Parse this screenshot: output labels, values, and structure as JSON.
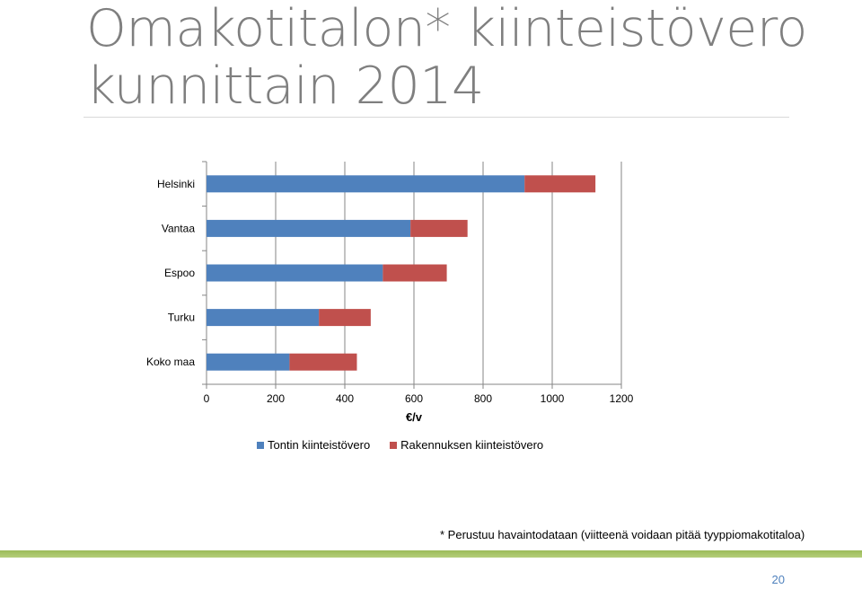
{
  "slide": {
    "title": "Omakotitalon* kiinteistövero kunnittain 2014",
    "footnote": "* Perustuu havaintodataan (viitteenä voidaan pitää tyyppiomakotitaloa)",
    "page_number": "20"
  },
  "chart_data": {
    "type": "bar",
    "orientation": "horizontal",
    "stacked": true,
    "categories": [
      "Helsinki",
      "Vantaa",
      "Espoo",
      "Turku",
      "Koko maa"
    ],
    "series": [
      {
        "name": "Tontin kiinteistövero",
        "values": [
          920,
          590,
          510,
          325,
          240
        ],
        "color": "#4f81bd"
      },
      {
        "name": "Rakennuksen kiinteistövero",
        "values": [
          205,
          165,
          185,
          150,
          195
        ],
        "color": "#c0504d"
      }
    ],
    "xlabel": "€/v",
    "ylabel": "",
    "xlim": [
      0,
      1200
    ],
    "xticks": [
      0,
      200,
      400,
      600,
      800,
      1000,
      1200
    ],
    "grid": true,
    "legend": "bottom"
  }
}
